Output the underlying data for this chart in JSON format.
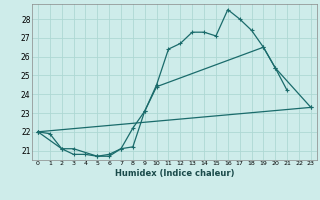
{
  "xlabel": "Humidex (Indice chaleur)",
  "ylabel": "",
  "background_color": "#ceecea",
  "grid_color": "#aed8d4",
  "line_color": "#1a6b6b",
  "xlim": [
    -0.5,
    23.5
  ],
  "ylim": [
    20.5,
    28.8
  ],
  "yticks": [
    21,
    22,
    23,
    24,
    25,
    26,
    27,
    28
  ],
  "xticks": [
    0,
    1,
    2,
    3,
    4,
    5,
    6,
    7,
    8,
    9,
    10,
    11,
    12,
    13,
    14,
    15,
    16,
    17,
    18,
    19,
    20,
    21,
    22,
    23
  ],
  "line1_x": [
    0,
    1,
    2,
    3,
    4,
    5,
    6,
    7,
    8,
    9,
    10,
    11,
    12,
    13,
    14,
    15,
    16,
    17,
    18,
    19,
    20,
    21
  ],
  "line1_y": [
    22.0,
    21.9,
    21.1,
    20.8,
    20.8,
    20.7,
    20.8,
    21.1,
    21.2,
    23.1,
    24.5,
    26.4,
    26.7,
    27.3,
    27.3,
    27.1,
    28.5,
    28.0,
    27.4,
    26.5,
    25.4,
    24.2
  ],
  "line2_x": [
    0,
    2,
    3,
    5,
    6,
    7,
    8,
    9,
    10,
    19,
    20,
    23
  ],
  "line2_y": [
    22.0,
    21.1,
    21.1,
    20.7,
    20.7,
    21.1,
    22.2,
    23.1,
    24.4,
    26.5,
    25.4,
    23.3
  ],
  "line3_x": [
    0,
    23
  ],
  "line3_y": [
    22.0,
    23.3
  ]
}
